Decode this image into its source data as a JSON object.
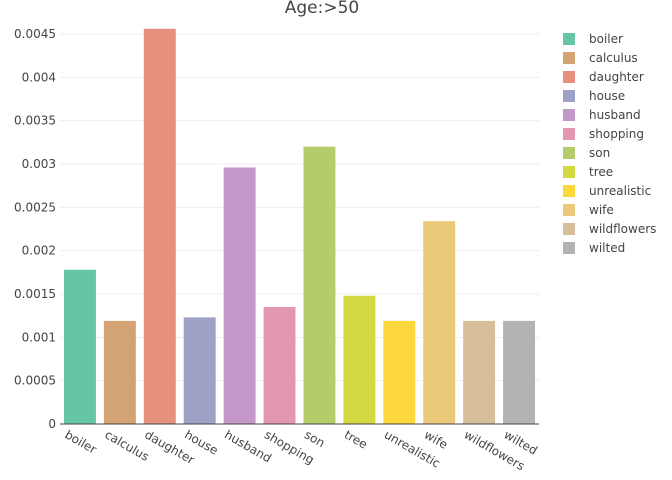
{
  "chart_data": {
    "type": "bar",
    "title": "Age:>50",
    "xlabel": "",
    "ylabel": "",
    "ylim": [
      0,
      0.0048
    ],
    "yticks": [
      "0",
      "0.0005",
      "0.001",
      "0.0015",
      "0.002",
      "0.0025",
      "0.003",
      "0.0035",
      "0.004",
      "0.0045"
    ],
    "grid": true,
    "legend_position": "right",
    "categories": [
      "boiler",
      "calculus",
      "daughter",
      "house",
      "husband",
      "shopping",
      "son",
      "tree",
      "unrealistic",
      "wife",
      "wildflowers",
      "wilted"
    ],
    "values": [
      0.00178,
      0.00119,
      0.00456,
      0.00123,
      0.00296,
      0.00135,
      0.0032,
      0.00148,
      0.00119,
      0.00234,
      0.00119,
      0.00119
    ],
    "colors": [
      "#66c5a4",
      "#d4a373",
      "#e5917b",
      "#9da1c6",
      "#c397c8",
      "#e297ae",
      "#b5cc6b",
      "#d3da41",
      "#fdd83c",
      "#ebc97b",
      "#d6be9b",
      "#b3b3b3"
    ]
  }
}
